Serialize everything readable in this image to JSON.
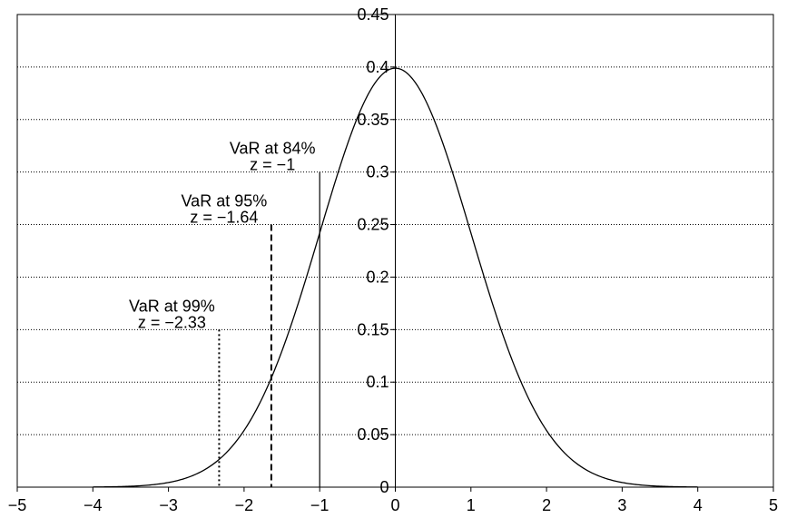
{
  "chart_data": {
    "type": "line",
    "title": "",
    "xlabel": "",
    "ylabel": "",
    "xlim": [
      -5,
      5
    ],
    "ylim": [
      0,
      0.45
    ],
    "x_ticks": [
      "-5",
      "-4",
      "-3",
      "-2",
      "-1",
      "0",
      "1",
      "2",
      "3",
      "4",
      "5"
    ],
    "y_ticks": [
      "0",
      "0.05",
      "0.1",
      "0.15",
      "0.2",
      "0.25",
      "0.3",
      "0.35",
      "0.4",
      "0.45"
    ],
    "grid": "horizontal dotted",
    "legend": "none",
    "series": [
      {
        "type": "normal-density",
        "x_range": [
          -4,
          4
        ],
        "mean": 0,
        "sd": 1,
        "x": [
          -4,
          -3.5,
          -3,
          -2.5,
          -2.33,
          -2,
          -1.64,
          -1.5,
          -1,
          -0.5,
          0,
          0.5,
          1,
          1.5,
          2,
          2.5,
          3,
          3.5,
          4
        ],
        "y": [
          0.0001,
          0.0009,
          0.0044,
          0.0175,
          0.0264,
          0.054,
          0.104,
          0.1295,
          0.242,
          0.3521,
          0.3989,
          0.3521,
          0.242,
          0.1295,
          0.054,
          0.0175,
          0.0044,
          0.0009,
          0.0001
        ]
      }
    ],
    "markers": [
      {
        "x": -2.33,
        "y_top": 0.15,
        "style": "dotted",
        "label_line1": "VaR at 99%",
        "label_line2": "z = −2.33"
      },
      {
        "x": -1.64,
        "y_top": 0.25,
        "style": "dashed",
        "label_line1": "VaR at 95%",
        "label_line2": "z = −1.64"
      },
      {
        "x": -1,
        "y_top": 0.3,
        "style": "solid",
        "label_line1": "VaR at 84%",
        "label_line2": "z = −1"
      }
    ]
  }
}
